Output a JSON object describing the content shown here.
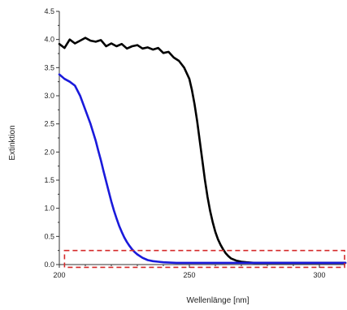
{
  "chart_data": {
    "type": "line",
    "xlabel": "Wellenlänge [nm]",
    "ylabel": "Extinktion",
    "xlim": [
      200,
      310
    ],
    "ylim": [
      0.0,
      4.5
    ],
    "x_ticks": [
      200,
      250,
      300
    ],
    "y_ticks": [
      0.0,
      0.5,
      1.0,
      1.5,
      2.0,
      2.5,
      3.0,
      3.5,
      4.0,
      4.5
    ],
    "x_tick_labels": [
      "200",
      "250",
      "300"
    ],
    "y_tick_labels": [
      "0.0",
      "0.5",
      "1.0",
      "1.5",
      "2.0",
      "2.5",
      "3.0",
      "3.5",
      "4.0",
      "4.5"
    ],
    "grid": false,
    "series": [
      {
        "color": "#000000",
        "x": [
          200,
          202,
          204,
          206,
          208,
          210,
          212,
          214,
          216,
          218,
          220,
          222,
          224,
          226,
          228,
          230,
          232,
          234,
          236,
          238,
          240,
          242,
          244,
          246,
          248,
          250,
          251,
          252,
          253,
          254,
          255,
          256,
          257,
          258,
          259,
          260,
          261,
          262,
          263,
          264,
          265,
          266,
          268,
          270,
          272,
          275,
          280,
          290,
          300,
          310
        ],
        "y": [
          3.92,
          3.85,
          4.0,
          3.93,
          3.98,
          4.03,
          3.98,
          3.96,
          3.99,
          3.88,
          3.93,
          3.88,
          3.92,
          3.84,
          3.88,
          3.9,
          3.84,
          3.86,
          3.82,
          3.85,
          3.76,
          3.78,
          3.68,
          3.62,
          3.5,
          3.3,
          3.1,
          2.85,
          2.55,
          2.2,
          1.85,
          1.5,
          1.2,
          0.95,
          0.75,
          0.58,
          0.45,
          0.35,
          0.27,
          0.2,
          0.15,
          0.11,
          0.07,
          0.05,
          0.04,
          0.03,
          0.03,
          0.03,
          0.03,
          0.03
        ]
      },
      {
        "color": "#1a1adb",
        "x": [
          200,
          202,
          204,
          206,
          208,
          210,
          212,
          213,
          214,
          215,
          216,
          217,
          218,
          219,
          220,
          221,
          222,
          223,
          224,
          225,
          226,
          227,
          228,
          229,
          230,
          232,
          234,
          236,
          238,
          240,
          245,
          250,
          260,
          270,
          280,
          290,
          300,
          310
        ],
        "y": [
          3.38,
          3.3,
          3.25,
          3.18,
          3.0,
          2.75,
          2.5,
          2.35,
          2.2,
          2.02,
          1.85,
          1.66,
          1.48,
          1.3,
          1.12,
          0.96,
          0.82,
          0.69,
          0.58,
          0.48,
          0.4,
          0.33,
          0.27,
          0.22,
          0.18,
          0.12,
          0.08,
          0.06,
          0.05,
          0.04,
          0.03,
          0.03,
          0.03,
          0.03,
          0.03,
          0.03,
          0.03,
          0.03
        ]
      }
    ],
    "highlight_box": {
      "x": [
        202,
        310
      ],
      "y": [
        -0.05,
        0.25
      ],
      "color": "#d42a2a",
      "style": "dashed"
    }
  }
}
